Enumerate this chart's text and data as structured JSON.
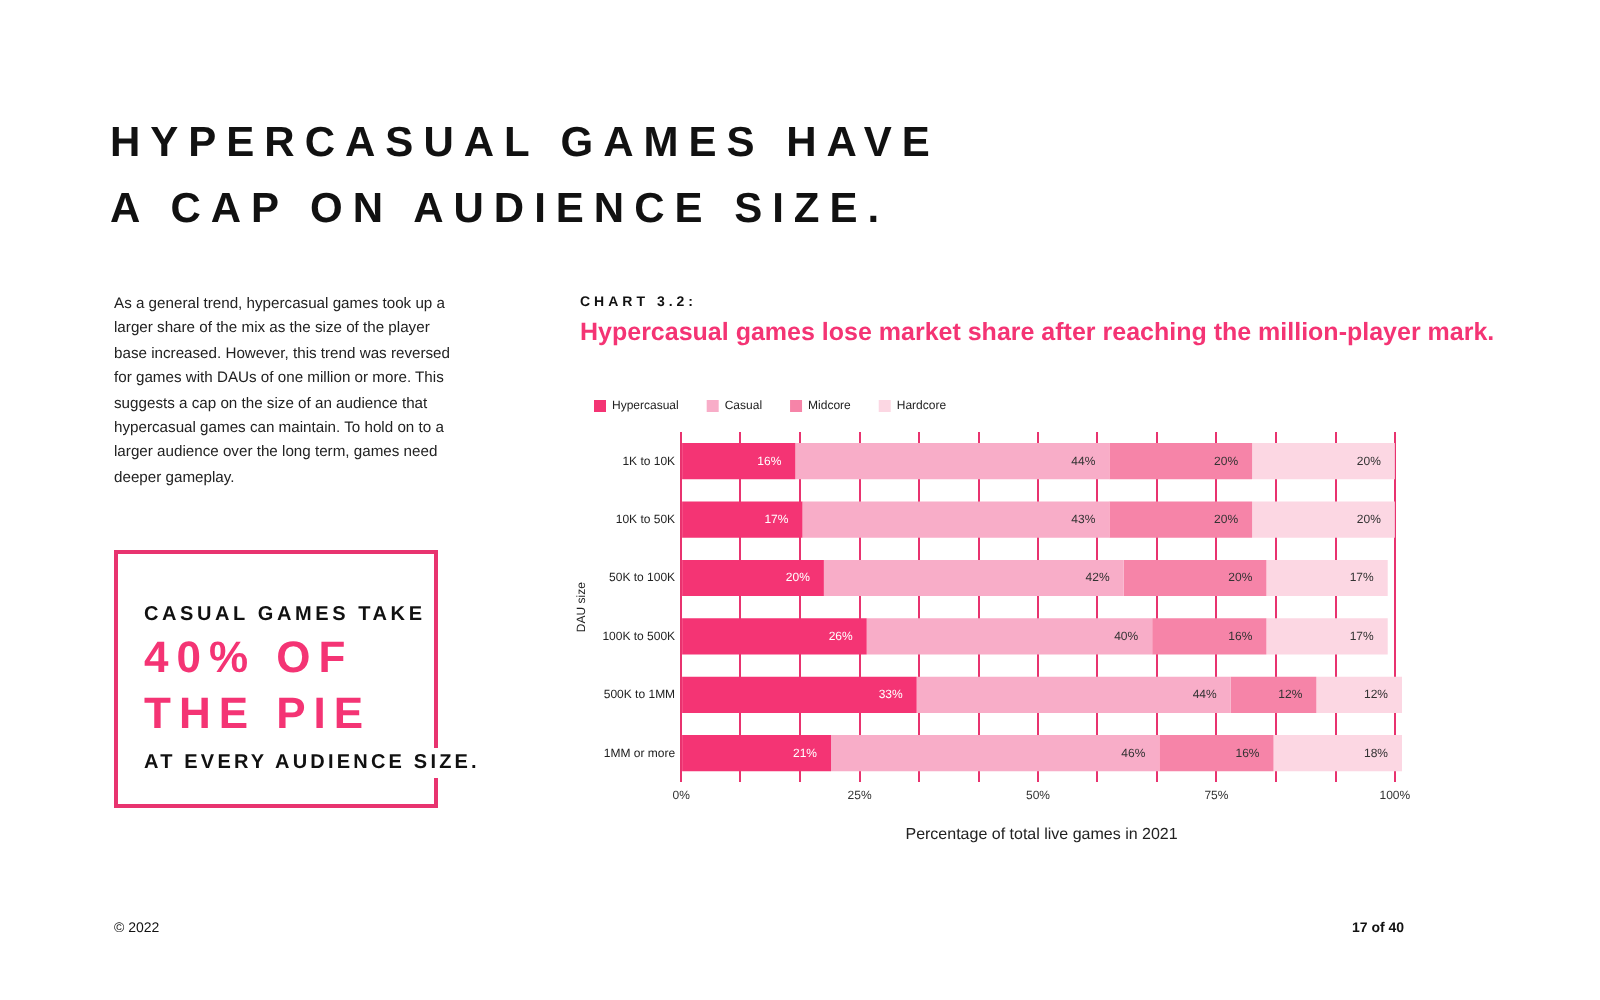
{
  "chart_data": {
    "type": "bar",
    "orientation": "horizontal",
    "stacked": true,
    "title": "Hypercasual games lose market share after reaching the million-player mark.",
    "subtitle": "CHART 3.2:",
    "xlabel": "Percentage of total live games in 2021",
    "ylabel": "DAU size",
    "categories": [
      "1K to 10K",
      "10K to 50K",
      "50K to 100K",
      "100K to 500K",
      "500K to 1MM",
      "1MM or more"
    ],
    "series": [
      {
        "name": "Hypercasual",
        "color": "#f43474",
        "values": [
          16,
          17,
          20,
          26,
          33,
          21
        ],
        "value_labels": [
          "16%",
          "17%",
          "20%",
          "26%",
          "33%",
          "21%"
        ]
      },
      {
        "name": "Casual",
        "color": "#f8adc8",
        "values": [
          44,
          43,
          42,
          40,
          44,
          46
        ],
        "value_labels": [
          "44%",
          "43%",
          "42%",
          "40%",
          "44%",
          "46%"
        ]
      },
      {
        "name": "Midcore",
        "color": "#f684a8",
        "values": [
          20,
          20,
          20,
          16,
          12,
          16
        ],
        "value_labels": [
          "20%",
          "20%",
          "20%",
          "16%",
          "12%",
          "16%"
        ]
      },
      {
        "name": "Hardcore",
        "color": "#fcd7e3",
        "values": [
          20,
          20,
          17,
          17,
          12,
          18
        ],
        "value_labels": [
          "20%",
          "20%",
          "17%",
          "17%",
          "12%",
          "18%"
        ]
      }
    ],
    "xlim": [
      0,
      101
    ],
    "xticks": [
      {
        "value": 0,
        "label": "0%"
      },
      {
        "value": 8.3,
        "label": null
      },
      {
        "value": 16.7,
        "label": null
      },
      {
        "value": 25,
        "label": "25%"
      },
      {
        "value": 33.3,
        "label": null
      },
      {
        "value": 41.7,
        "label": null
      },
      {
        "value": 50,
        "label": "50%"
      },
      {
        "value": 58.3,
        "label": null
      },
      {
        "value": 66.7,
        "label": null
      },
      {
        "value": 75,
        "label": "75%"
      },
      {
        "value": 83.3,
        "label": null
      },
      {
        "value": 91.7,
        "label": null
      },
      {
        "value": 100,
        "label": "100%"
      }
    ],
    "grid": "x",
    "legend": "top",
    "annotations": [
      "HYPERCASUAL GAMES HAVE A CAP ON AUDIENCE SIZE.",
      "As a general trend, hypercasual games took up a larger share of the mix as the size of the player base increased. However, this trend was reversed for games with DAUs of one million or more. This suggests a cap on the size of an audience that hypercasual games can maintain. To hold on to a larger audience over the long term, games need deeper gameplay.",
      "CASUAL GAMES TAKE",
      "40% OF THE PIE",
      "AT EVERY AUDIENCE SIZE.",
      "© 2022",
      "17 of 40"
    ]
  }
}
